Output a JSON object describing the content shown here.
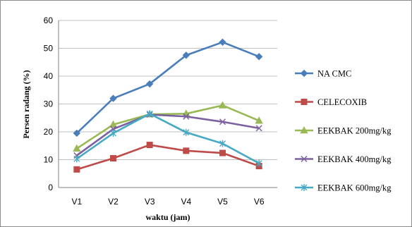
{
  "chart_data": {
    "type": "line",
    "categories": [
      "V1",
      "V2",
      "V3",
      "V4",
      "V5",
      "V6"
    ],
    "series": [
      {
        "name": "NA CMC",
        "values": [
          19.5,
          32.0,
          37.2,
          47.5,
          52.2,
          47.0
        ],
        "color": "#4a7ebb",
        "marker": "diamond"
      },
      {
        "name": "CELECOXIB",
        "values": [
          6.5,
          10.5,
          15.3,
          13.2,
          12.4,
          7.7
        ],
        "color": "#be4b48",
        "marker": "square"
      },
      {
        "name": "EEKBAK 200mg/kg",
        "values": [
          14.0,
          22.6,
          26.3,
          26.5,
          29.5,
          24.0
        ],
        "color": "#98b954",
        "marker": "triangle"
      },
      {
        "name": "EEKBAK 400mg/kg",
        "values": [
          11.5,
          21.0,
          26.2,
          25.5,
          23.6,
          21.3
        ],
        "color": "#7d60a0",
        "marker": "x"
      },
      {
        "name": "EEKBAK 600mg/kg",
        "values": [
          10.3,
          19.5,
          26.5,
          19.8,
          15.8,
          8.7
        ],
        "color": "#46aac5",
        "marker": "star"
      }
    ],
    "xlabel": "waktu (jam)",
    "ylabel": "Persen radang (%)",
    "ylim": [
      0,
      60
    ],
    "yticks": [
      0,
      10,
      20,
      30,
      40,
      50,
      60
    ],
    "grid": true,
    "legend_position": "right"
  }
}
